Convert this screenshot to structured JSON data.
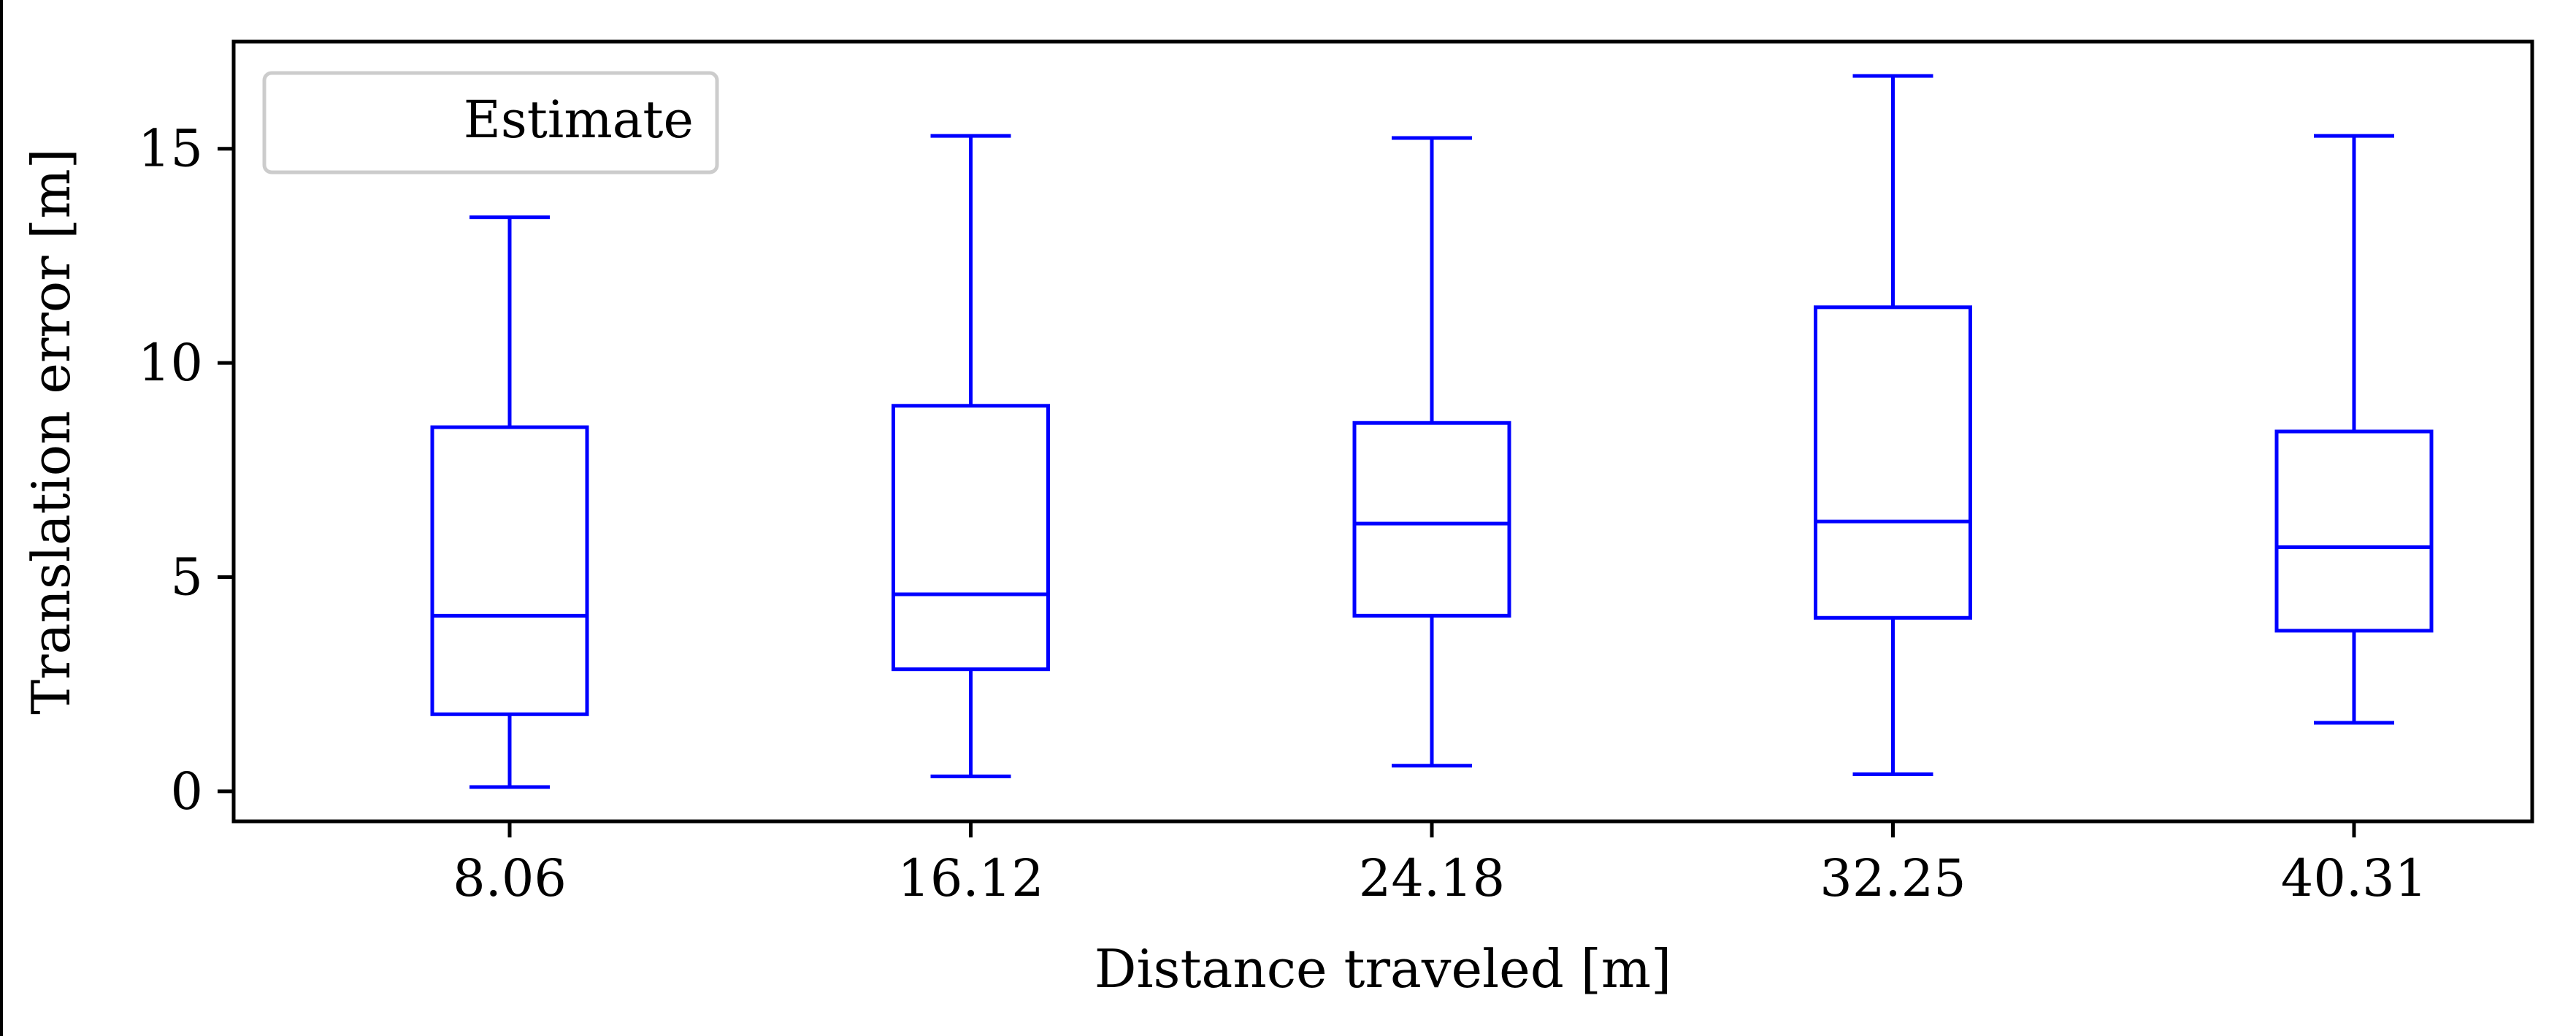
{
  "chart_data": {
    "type": "box",
    "xlabel": "Distance traveled [m]",
    "ylabel": "Translation error [m]",
    "categories": [
      "8.06",
      "16.12",
      "24.18",
      "32.25",
      "40.31"
    ],
    "yticks": [
      "0",
      "5",
      "10",
      "15"
    ],
    "ylim": [
      -0.7,
      17.5
    ],
    "grid": false,
    "legend": {
      "entries": [
        "Estimate"
      ],
      "placement": "top-left"
    },
    "series": [
      {
        "name": "Estimate",
        "color": "#0000ff",
        "boxes": [
          {
            "whisker_low": 0.1,
            "q1": 1.8,
            "median": 4.1,
            "q3": 8.5,
            "whisker_high": 13.4
          },
          {
            "whisker_low": 0.35,
            "q1": 2.85,
            "median": 4.6,
            "q3": 9.0,
            "whisker_high": 15.3
          },
          {
            "whisker_low": 0.6,
            "q1": 4.1,
            "median": 6.25,
            "q3": 8.6,
            "whisker_high": 15.25
          },
          {
            "whisker_low": 0.4,
            "q1": 4.05,
            "median": 6.3,
            "q3": 11.3,
            "whisker_high": 16.7
          },
          {
            "whisker_low": 1.6,
            "q1": 3.75,
            "median": 5.7,
            "q3": 8.4,
            "whisker_high": 15.3
          }
        ]
      }
    ]
  }
}
